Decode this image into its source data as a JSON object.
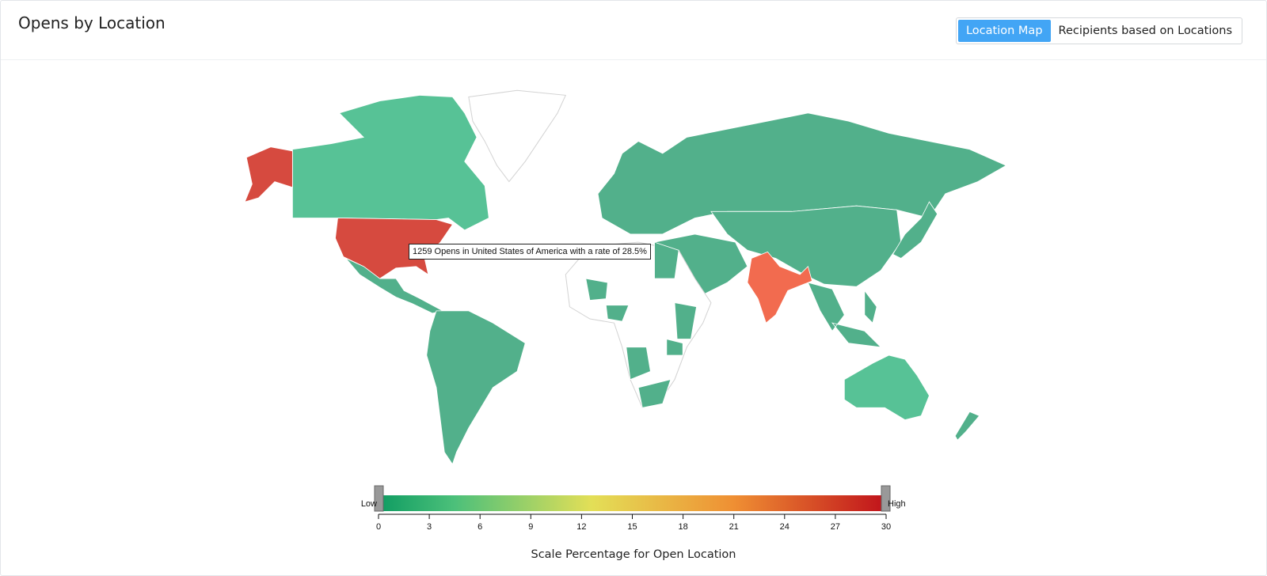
{
  "header": {
    "title": "Opens by Location",
    "tabs": [
      "Location Map",
      "Recipients based on Locations"
    ]
  },
  "tooltip": "1259 Opens in United States of America with a rate of 28.5%",
  "legend": {
    "low": "Low",
    "high": "High",
    "range": [
      0,
      30
    ],
    "ticks": [
      0,
      3,
      6,
      9,
      12,
      15,
      18,
      21,
      24,
      27,
      30
    ],
    "caption": "Scale Percentage for Open Location"
  }
}
